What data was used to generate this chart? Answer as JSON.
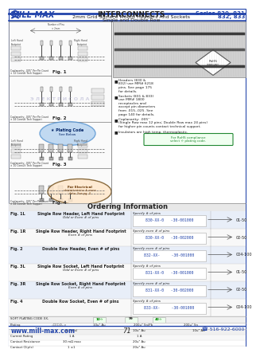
{
  "title_main": "INTERCONNECTS",
  "title_sub": "2mm Grid Surface Mount Headers And Sockets",
  "title_sub2": "Single and Double Row",
  "series": "Series 830, 831",
  "series2": "832, 833",
  "page_num": "71",
  "website": "www.mill-max.com",
  "phone": "☎ 516-922-6000",
  "bullet1": "Headers (830 &\n832) use MM# 6218\npins. See page 175\nfor details.",
  "bullet2": "Sockets (831 & 833)\nuse MM# 1800\nreceptacles and\naccept pin diameters\nfrom .015-.025. See\npage 140 for details.",
  "bullet3": "Coplanarity: .005''\n(Single Row max 12 pins; Double Row max 24 pins)\nfor higher pin counts contact technical support.",
  "bullet4": "Insulators are high temp. thermoplastic.",
  "rohs_text": "For RoHS compliance\nselect ☆ plating code.",
  "ordering_title": "Ordering Information",
  "ordering_rows": [
    {
      "fig": "1L",
      "desc1": "Single Row Header, Left Hand Footprint",
      "desc2": "Odd or Even # of pins",
      "part": "830-XX-0   -30-001000",
      "spec": "01-50",
      "spec_label": "Specify # of pins"
    },
    {
      "fig": "1R",
      "desc1": "Single Row Header, Right Hand Footprint",
      "desc2": "Even # of pins",
      "part": "830-XX-0   -30-002000",
      "spec": "02-50",
      "spec_label": "Specify even # of pins"
    },
    {
      "fig": "2",
      "desc1": "Double Row Header, Even # of pins",
      "desc2": "",
      "part": "832-XX-     -30-001000",
      "spec": "004-100",
      "spec_label": "Specify even # of pins"
    },
    {
      "fig": "3L",
      "desc1": "Single Row Socket, Left Hand Footprint",
      "desc2": "Odd or Even # of pins",
      "part": "831-XX-0   -30-001000",
      "spec": "01-50",
      "spec_label": "Specify # of pins"
    },
    {
      "fig": "3R",
      "desc1": "Single Row Socket, Right Hand Footprint",
      "desc2": "Even # of pins",
      "part": "831-XX-0   -30-002000",
      "spec": "02-50",
      "spec_label": "Specify even # of pins"
    },
    {
      "fig": "4",
      "desc1": "Double Row Socket, Even # of pins",
      "desc2": "",
      "part": "833-XX-     -30-001000",
      "spec": "004-100",
      "spec_label": "Specify # of pins"
    }
  ],
  "bg_color": "#ffffff",
  "blue": "#2244aa",
  "dark": "#222222",
  "green": "#228833",
  "light_gray": "#f0f0f0",
  "mid_gray": "#cccccc",
  "table_bg1": "#e8e8f8",
  "table_bg2": "#ffffff"
}
